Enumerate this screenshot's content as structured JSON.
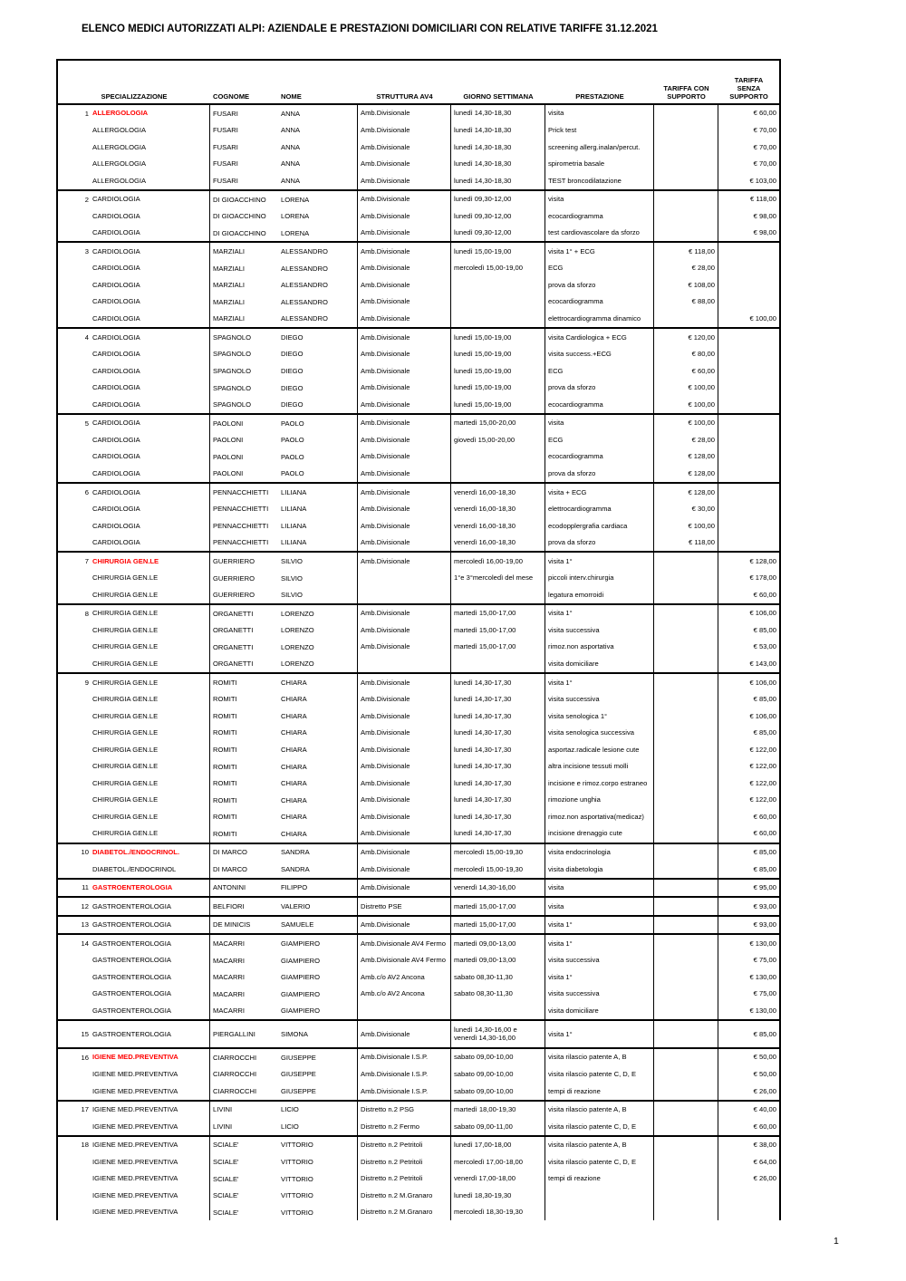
{
  "page": {
    "title": "ELENCO MEDICI AUTORIZZATI ALPI: AZIENDALE E PRESTAZIONI DOMICILIARI CON RELATIVE TARIFFE 31.12.2021",
    "page_number": "1"
  },
  "colors": {
    "highlight_red": "#FF0000",
    "border": "#000000",
    "background": "#FFFFFF"
  },
  "table": {
    "headers": {
      "specializzazione": "SPECIALIZZAZIONE",
      "cognome": "COGNOME",
      "nome": "NOME",
      "struttura": "STRUTTURA AV4",
      "giorno": "GIORNO SETTIMANA",
      "prestazione": "PRESTAZIONE",
      "tariffa_con": "TARIFFA CON SUPPORTO",
      "tariffa_senza": "TARIFFA SENZA SUPPORTO"
    },
    "row_fields": [
      "num",
      "specializzazione",
      "cognome",
      "nome",
      "struttura",
      "giorno_settimana",
      "prestazione",
      "tariffa_con_supporto",
      "tariffa_senza_supporto",
      "highlight"
    ],
    "groups": [
      {
        "rows": [
          [
            "1",
            "ALLERGOLOGIA",
            "FUSARI",
            "ANNA",
            "Amb.Divisionale",
            "lunedì 14,30-18,30",
            "visita",
            "",
            "€ 60,00",
            true
          ],
          [
            "",
            "ALLERGOLOGIA",
            "FUSARI",
            "ANNA",
            "Amb.Divisionale",
            "lunedì 14,30-18,30",
            "Prick test",
            "",
            "€ 70,00",
            false
          ],
          [
            "",
            "ALLERGOLOGIA",
            "FUSARI",
            "ANNA",
            "Amb.Divisionale",
            "lunedì 14,30-18,30",
            "screening allerg.inalan/percut.",
            "",
            "€ 70,00",
            false
          ],
          [
            "",
            "ALLERGOLOGIA",
            "FUSARI",
            "ANNA",
            "Amb.Divisionale",
            "lunedì 14,30-18,30",
            "spirometria basale",
            "",
            "€ 70,00",
            false
          ],
          [
            "",
            "ALLERGOLOGIA",
            "FUSARI",
            "ANNA",
            "Amb.Divisionale",
            "lunedì 14,30-18,30",
            "TEST broncodilatazione",
            "",
            "€ 103,00",
            false
          ]
        ]
      },
      {
        "rows": [
          [
            "2",
            "CARDIOLOGIA",
            "DI GIOACCHINO",
            "LORENA",
            "Amb.Divisionale",
            "lunedì 09,30-12,00",
            "visita",
            "",
            "€ 118,00",
            false
          ],
          [
            "",
            "CARDIOLOGIA",
            "DI GIOACCHINO",
            "LORENA",
            "Amb.Divisionale",
            "lunedì 09,30-12,00",
            "ecocardiogramma",
            "",
            "€ 98,00",
            false
          ],
          [
            "",
            "CARDIOLOGIA",
            "DI GIOACCHINO",
            "LORENA",
            "Amb.Divisionale",
            "lunedì 09,30-12,00",
            "test cardiovascolare da sforzo",
            "",
            "€ 98,00",
            false
          ]
        ]
      },
      {
        "rows": [
          [
            "3",
            "CARDIOLOGIA",
            "MARZIALI",
            "ALESSANDRO",
            "Amb.Divisionale",
            "lunedì 15,00-19,00",
            "visita 1° + ECG",
            "€ 118,00",
            "",
            false
          ],
          [
            "",
            "CARDIOLOGIA",
            "MARZIALI",
            "ALESSANDRO",
            "Amb.Divisionale",
            "mercoledì 15,00-19,00",
            "ECG",
            "€ 28,00",
            "",
            false
          ],
          [
            "",
            "CARDIOLOGIA",
            "MARZIALI",
            "ALESSANDRO",
            "Amb.Divisionale",
            "",
            "prova da sforzo",
            "€ 108,00",
            "",
            false
          ],
          [
            "",
            "CARDIOLOGIA",
            "MARZIALI",
            "ALESSANDRO",
            "Amb.Divisionale",
            "",
            "ecocardiogramma",
            "€ 88,00",
            "",
            false
          ],
          [
            "",
            "CARDIOLOGIA",
            "MARZIALI",
            "ALESSANDRO",
            "Amb.Divisionale",
            "",
            "elettrocardiogramma dinamico",
            "",
            "€ 100,00",
            false
          ]
        ]
      },
      {
        "rows": [
          [
            "4",
            "CARDIOLOGIA",
            "SPAGNOLO",
            "DIEGO",
            "Amb.Divisionale",
            "lunedì 15,00-19,00",
            "visita Cardiologica + ECG",
            "€ 120,00",
            "",
            false
          ],
          [
            "",
            "CARDIOLOGIA",
            "SPAGNOLO",
            "DIEGO",
            "Amb.Divisionale",
            "lunedì 15,00-19,00",
            "visita success.+ECG",
            "€ 80,00",
            "",
            false
          ],
          [
            "",
            "CARDIOLOGIA",
            "SPAGNOLO",
            "DIEGO",
            "Amb.Divisionale",
            "lunedì 15,00-19,00",
            "ECG",
            "€ 60,00",
            "",
            false
          ],
          [
            "",
            "CARDIOLOGIA",
            "SPAGNOLO",
            "DIEGO",
            "Amb.Divisionale",
            "lunedì 15,00-19,00",
            "prova da sforzo",
            "€ 100,00",
            "",
            false
          ],
          [
            "",
            "CARDIOLOGIA",
            "SPAGNOLO",
            "DIEGO",
            "Amb.Divisionale",
            "lunedì 15,00-19,00",
            "ecocardiogramma",
            "€ 100,00",
            "",
            false
          ]
        ]
      },
      {
        "rows": [
          [
            "5",
            "CARDIOLOGIA",
            "PAOLONI",
            "PAOLO",
            "Amb.Divisionale",
            "martedì 15,00-20,00",
            "visita",
            "€ 100,00",
            "",
            false
          ],
          [
            "",
            "CARDIOLOGIA",
            "PAOLONI",
            "PAOLO",
            "Amb.Divisionale",
            "giovedì 15,00-20,00",
            "ECG",
            "€ 28,00",
            "",
            false
          ],
          [
            "",
            "CARDIOLOGIA",
            "PAOLONI",
            "PAOLO",
            "Amb.Divisionale",
            "",
            "ecocardiogramma",
            "€ 128,00",
            "",
            false
          ],
          [
            "",
            "CARDIOLOGIA",
            "PAOLONI",
            "PAOLO",
            "Amb.Divisionale",
            "",
            "prova da sforzo",
            "€ 128,00",
            "",
            false
          ]
        ]
      },
      {
        "rows": [
          [
            "6",
            "CARDIOLOGIA",
            "PENNACCHIETTI",
            "LILIANA",
            "Amb.Divisionale",
            "venerdì 16,00-18,30",
            "visita + ECG",
            "€ 128,00",
            "",
            false
          ],
          [
            "",
            "CARDIOLOGIA",
            "PENNACCHIETTI",
            "LILIANA",
            "Amb.Divisionale",
            "venerdì 16,00-18,30",
            "elettrocardiogramma",
            "€ 30,00",
            "",
            false
          ],
          [
            "",
            "CARDIOLOGIA",
            "PENNACCHIETTI",
            "LILIANA",
            "Amb.Divisionale",
            "venerdì 16,00-18,30",
            "ecodopplergrafia cardiaca",
            "€ 100,00",
            "",
            false
          ],
          [
            "",
            "CARDIOLOGIA",
            "PENNACCHIETTI",
            "LILIANA",
            "Amb.Divisionale",
            "venerdì 16,00-18,30",
            "prova da sforzo",
            "€ 118,00",
            "",
            false
          ]
        ]
      },
      {
        "rows": [
          [
            "7",
            "CHIRURGIA GEN.LE",
            "GUERRIERO",
            "SILVIO",
            "Amb.Divisionale",
            "mercoledì 16,00-19,00",
            "visita 1°",
            "",
            "€ 128,00",
            true
          ],
          [
            "",
            "CHIRURGIA GEN.LE",
            "GUERRIERO",
            "SILVIO",
            "",
            "1°e 3°mercoledì del mese",
            "piccoli interv.chirurgia",
            "",
            "€ 178,00",
            false
          ],
          [
            "",
            "CHIRURGIA GEN.LE",
            "GUERRIERO",
            "SILVIO",
            "",
            "",
            "legatura emorroidi",
            "",
            "€ 60,00",
            false
          ]
        ]
      },
      {
        "rows": [
          [
            "8",
            "CHIRURGIA GEN.LE",
            "ORGANETTI",
            "LORENZO",
            "Amb.Divisionale",
            "martedì 15,00-17,00",
            "visita 1°",
            "",
            "€ 106,00",
            false
          ],
          [
            "",
            "CHIRURGIA GEN.LE",
            "ORGANETTI",
            "LORENZO",
            "Amb.Divisionale",
            "martedì 15,00-17,00",
            "visita successiva",
            "",
            "€ 85,00",
            false
          ],
          [
            "",
            "CHIRURGIA GEN.LE",
            "ORGANETTI",
            "LORENZO",
            "Amb.Divisionale",
            "martedì 15,00-17,00",
            "rimoz.non asportativa",
            "",
            "€ 53,00",
            false
          ],
          [
            "",
            "CHIRURGIA GEN.LE",
            "ORGANETTI",
            "LORENZO",
            "",
            "",
            "visita domiciliare",
            "",
            "€ 143,00",
            false
          ]
        ]
      },
      {
        "rows": [
          [
            "9",
            "CHIRURGIA GEN.LE",
            "ROMITI",
            "CHIARA",
            "Amb.Divisionale",
            "lunedì 14,30-17,30",
            "visita 1°",
            "",
            "€ 106,00",
            false
          ],
          [
            "",
            "CHIRURGIA GEN.LE",
            "ROMITI",
            "CHIARA",
            "Amb.Divisionale",
            "lunedì 14,30-17,30",
            "visita successiva",
            "",
            "€ 85,00",
            false
          ],
          [
            "",
            "CHIRURGIA GEN.LE",
            "ROMITI",
            "CHIARA",
            "Amb.Divisionale",
            "lunedì 14,30-17,30",
            "visita senologica 1°",
            "",
            "€ 106,00",
            false
          ],
          [
            "",
            "CHIRURGIA GEN.LE",
            "ROMITI",
            "CHIARA",
            "Amb.Divisionale",
            "lunedì 14,30-17,30",
            "visita senologica successiva",
            "",
            "€ 85,00",
            false
          ],
          [
            "",
            "CHIRURGIA GEN.LE",
            "ROMITI",
            "CHIARA",
            "Amb.Divisionale",
            "lunedì 14,30-17,30",
            "asportaz.radicale lesione cute",
            "",
            "€ 122,00",
            false
          ],
          [
            "",
            "CHIRURGIA GEN.LE",
            "ROMITI",
            "CHIARA",
            "Amb.Divisionale",
            "lunedì 14,30-17,30",
            "altra incisione tessuti molli",
            "",
            "€ 122,00",
            false
          ],
          [
            "",
            "CHIRURGIA GEN.LE",
            "ROMITI",
            "CHIARA",
            "Amb.Divisionale",
            "lunedì 14,30-17,30",
            "incisione e rimoz.corpo estraneo",
            "",
            "€ 122,00",
            false
          ],
          [
            "",
            "CHIRURGIA GEN.LE",
            "ROMITI",
            "CHIARA",
            "Amb.Divisionale",
            "lunedì 14,30-17,30",
            "rimozione unghia",
            "",
            "€ 122,00",
            false
          ],
          [
            "",
            "CHIRURGIA GEN.LE",
            "ROMITI",
            "CHIARA",
            "Amb.Divisionale",
            "lunedì 14,30-17,30",
            "rimoz.non asportativa(medicaz)",
            "",
            "€ 60,00",
            false
          ],
          [
            "",
            "CHIRURGIA GEN.LE",
            "ROMITI",
            "CHIARA",
            "Amb.Divisionale",
            "lunedì 14,30-17,30",
            "incisione drenaggio cute",
            "",
            "€ 60,00",
            false
          ]
        ]
      },
      {
        "rows": [
          [
            "10",
            "DIABETOL./ENDOCRINOL.",
            "DI MARCO",
            "SANDRA",
            "Amb.Divisionale",
            "mercoledì 15,00-19,30",
            "visita endocrinologia",
            "",
            "€ 85,00",
            true
          ],
          [
            "",
            "DIABETOL./ENDOCRINOL",
            "DI MARCO",
            "SANDRA",
            "Amb.Divisionale",
            "mercoledì 15,00-19,30",
            "visita diabetologia",
            "",
            "€ 85,00",
            false
          ]
        ]
      },
      {
        "rows": [
          [
            "11",
            "GASTROENTEROLOGIA",
            "ANTONINI",
            "FILIPPO",
            "Amb.Divisionale",
            "venerdì 14,30-16,00",
            "visita",
            "",
            "€ 95,00",
            true
          ]
        ]
      },
      {
        "rows": [
          [
            "12",
            "GASTROENTEROLOGIA",
            "BELFIORI",
            "VALERIO",
            "Distretto PSE",
            "martedì 15,00-17,00",
            "visita",
            "",
            "€ 93,00",
            false
          ]
        ]
      },
      {
        "rows": [
          [
            "13",
            "GASTROENTEROLOGIA",
            "DE MINICIS",
            "SAMUELE",
            "Amb.Divisionale",
            "martedì 15,00-17,00",
            "visita 1°",
            "",
            "€ 93,00",
            false
          ]
        ]
      },
      {
        "rows": [
          [
            "14",
            "GASTROENTEROLOGIA",
            "MACARRI",
            "GIAMPIERO",
            "Amb.Divisionale AV4 Fermo",
            "martedì 09,00-13,00",
            "visita 1°",
            "",
            "€ 130,00",
            false
          ],
          [
            "",
            "GASTROENTEROLOGIA",
            "MACARRI",
            "GIAMPIERO",
            "Amb.Divisionale AV4 Fermo",
            "martedì 09,00-13,00",
            "visita successiva",
            "",
            "€ 75,00",
            false
          ],
          [
            "",
            "GASTROENTEROLOGIA",
            "MACARRI",
            "GIAMPIERO",
            "Amb.c/o AV2 Ancona",
            "sabato 08,30-11,30",
            "visita 1°",
            "",
            "€ 130,00",
            false
          ],
          [
            "",
            "GASTROENTEROLOGIA",
            "MACARRI",
            "GIAMPIERO",
            "Amb.c/o AV2 Ancona",
            "sabato 08,30-11,30",
            "visita successiva",
            "",
            "€ 75,00",
            false
          ],
          [
            "",
            "GASTROENTEROLOGIA",
            "MACARRI",
            "GIAMPIERO",
            "",
            "",
            "visita domiciliare",
            "",
            "€ 130,00",
            false
          ]
        ]
      },
      {
        "rows": [
          [
            "15",
            "GASTROENTEROLOGIA",
            "PIERGALLINI",
            "SIMONA",
            "Amb.Divisionale",
            "lunedì 14,30-16,00 e\nvenerdì 14,30-16,00",
            "visita 1°",
            "",
            "€ 85,00",
            false
          ]
        ]
      },
      {
        "rows": [
          [
            "16",
            "IGIENE MED.PREVENTIVA",
            "CIARROCCHI",
            "GIUSEPPE",
            "Amb.Divisionale I.S.P.",
            "sabato 09,00-10,00",
            "visita rilascio patente A, B",
            "",
            "€ 50,00",
            true
          ],
          [
            "",
            "IGIENE MED.PREVENTIVA",
            "CIARROCCHI",
            "GIUSEPPE",
            "Amb.Divisionale I.S.P.",
            "sabato 09,00-10,00",
            "visita rilascio patente C, D, E",
            "",
            "€ 50,00",
            false
          ],
          [
            "",
            "IGIENE MED.PREVENTIVA",
            "CIARROCCHI",
            "GIUSEPPE",
            "Amb.Divisionale I.S.P.",
            "sabato 09,00-10,00",
            "tempi di reazione",
            "",
            "€ 26,00",
            false
          ]
        ]
      },
      {
        "rows": [
          [
            "17",
            "IGIENE MED.PREVENTIVA",
            "LIVINI",
            "LICIO",
            "Distretto n.2 PSG",
            "martedì 18,00-19,30",
            "visita rilascio patente A, B",
            "",
            "€ 40,00",
            false
          ],
          [
            "",
            "IGIENE MED.PREVENTIVA",
            "LIVINI",
            "LICIO",
            "Distretto n.2 Fermo",
            "sabato 09,00-11,00",
            "visita rilascio patente C, D, E",
            "",
            "€ 60,00",
            false
          ]
        ]
      },
      {
        "rows": [
          [
            "18",
            "IGIENE MED.PREVENTIVA",
            "SCIALE'",
            "VITTORIO",
            "Distretto n.2 Petritoli",
            "lunedì 17,00-18,00",
            "visita rilascio patente A, B",
            "",
            "€ 38,00",
            false
          ],
          [
            "",
            "IGIENE MED.PREVENTIVA",
            "SCIALE'",
            "VITTORIO",
            "Distretto n.2 Petritoli",
            "mercoledì 17,00-18,00",
            "visita rilascio patente C, D, E",
            "",
            "€ 64,00",
            false
          ],
          [
            "",
            "IGIENE MED.PREVENTIVA",
            "SCIALE'",
            "VITTORIO",
            "Distretto n.2 Petritoli",
            "venerdì 17,00-18,00",
            "tempi di reazione",
            "",
            "€ 26,00",
            false
          ],
          [
            "",
            "IGIENE MED.PREVENTIVA",
            "SCIALE'",
            "VITTORIO",
            "Distretto n.2 M.Granaro",
            "lunedì 18,30-19,30",
            "",
            "",
            "",
            false
          ],
          [
            "",
            "IGIENE MED.PREVENTIVA",
            "SCIALE'",
            "VITTORIO",
            "Distretto n.2 M.Granaro",
            "mercoledì 18,30-19,30",
            "",
            "",
            "",
            false
          ]
        ]
      }
    ]
  }
}
